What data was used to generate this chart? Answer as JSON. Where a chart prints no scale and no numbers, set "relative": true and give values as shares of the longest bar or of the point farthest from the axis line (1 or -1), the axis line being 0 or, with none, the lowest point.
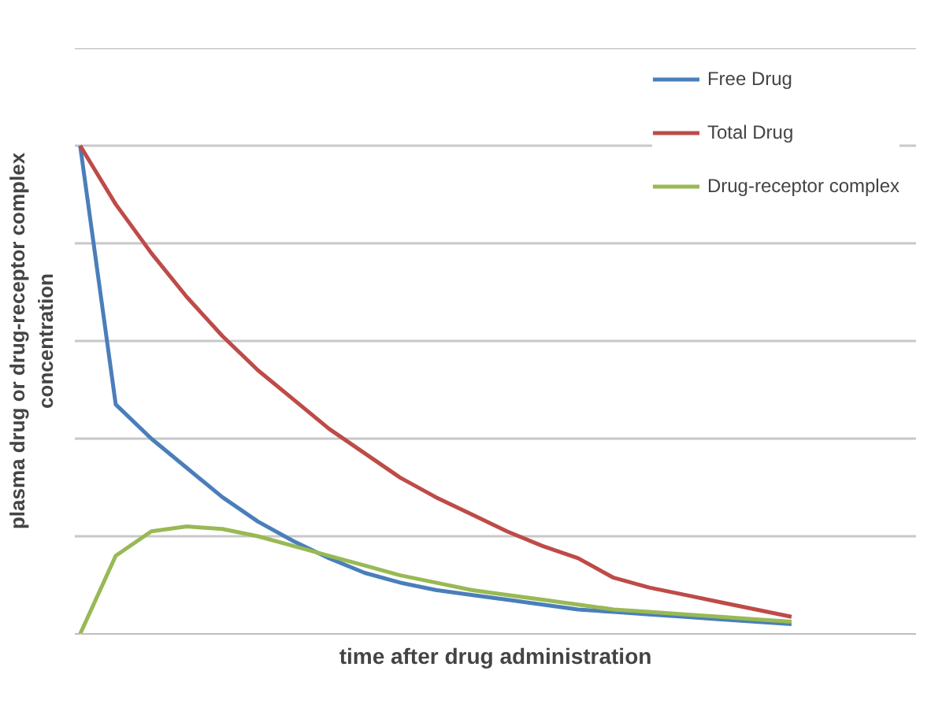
{
  "chart_data": {
    "type": "line",
    "relative": true,
    "xlabel": "time after drug administration",
    "ylabel": "plasma drug or drug-receptor complex\nconcentration",
    "categories": [
      null,
      null,
      null,
      null,
      null,
      null,
      null,
      null,
      null,
      null,
      null,
      null,
      null,
      null,
      null,
      null,
      null,
      null,
      null,
      null,
      null
    ],
    "series": [
      {
        "name": "Free Drug",
        "color": "#4a7ebb",
        "values": [
          1.0,
          0.47,
          0.4,
          0.34,
          0.28,
          0.23,
          0.19,
          0.155,
          0.125,
          0.105,
          0.09,
          0.08,
          0.07,
          0.06,
          0.05,
          0.045,
          0.04,
          0.035,
          0.03,
          0.025,
          0.02
        ]
      },
      {
        "name": "Total Drug",
        "color": "#be4b48",
        "values": [
          1.0,
          0.88,
          0.78,
          0.69,
          0.61,
          0.54,
          0.48,
          0.42,
          0.37,
          0.32,
          0.28,
          0.245,
          0.21,
          0.18,
          0.155,
          0.115,
          0.095,
          0.08,
          0.065,
          0.05,
          0.035
        ]
      },
      {
        "name": "Drug-receptor complex",
        "color": "#98b954",
        "values": [
          0.0,
          0.16,
          0.21,
          0.22,
          0.215,
          0.2,
          0.18,
          0.16,
          0.14,
          0.12,
          0.105,
          0.09,
          0.08,
          0.07,
          0.06,
          0.05,
          0.045,
          0.04,
          0.035,
          0.03,
          0.025
        ]
      }
    ],
    "grid": "y",
    "legend": "top right",
    "marker": "none",
    "line_style": "solid"
  }
}
